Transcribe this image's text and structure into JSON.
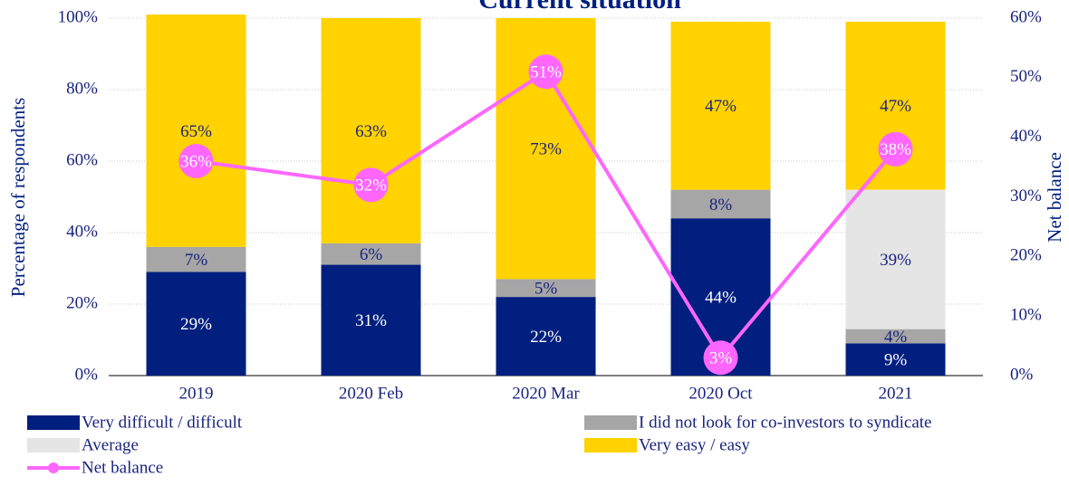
{
  "chart_data": {
    "type": "bar",
    "stacked": true,
    "title": "Current situation",
    "y_label": "Percentage of respondents",
    "y2_label": "Net balance",
    "categories": [
      "2019",
      "2020 Feb",
      "2020 Mar",
      "2020 Oct",
      "2021"
    ],
    "series": [
      {
        "name": "Very difficult / difficult",
        "color": "#001f7e",
        "values": [
          29,
          31,
          22,
          44,
          9
        ],
        "value_labels": [
          "29%",
          "31%",
          "22%",
          "44%",
          "9%"
        ]
      },
      {
        "name": "I did not look for co-investors to syndicate",
        "color": "#a6a6a6",
        "values": [
          7,
          6,
          5,
          8,
          4
        ],
        "value_labels": [
          "7%",
          "6%",
          "5%",
          "8%",
          "4%"
        ]
      },
      {
        "name": "Average",
        "color": "#e5e5e5",
        "values": [
          null,
          null,
          null,
          null,
          39
        ],
        "value_labels": [
          null,
          null,
          null,
          null,
          "39%"
        ]
      },
      {
        "name": "Very easy / easy",
        "color": "#ffd200",
        "values": [
          65,
          63,
          73,
          47,
          47
        ],
        "value_labels": [
          "65%",
          "63%",
          "73%",
          "47%",
          "47%"
        ]
      },
      {
        "name": "Net balance",
        "type": "line",
        "axis": "y2",
        "color": "#ff66ff",
        "values": [
          36,
          32,
          51,
          3,
          38
        ],
        "value_labels": [
          "36%",
          "32%",
          "51%",
          "3%",
          "38%"
        ]
      }
    ],
    "ylim": [
      0,
      100
    ],
    "yticks": [
      {
        "value": 0,
        "label": "0%"
      },
      {
        "value": 20,
        "label": "20%"
      },
      {
        "value": 40,
        "label": "40%"
      },
      {
        "value": 60,
        "label": "60%"
      },
      {
        "value": 80,
        "label": "80%"
      },
      {
        "value": 100,
        "label": "100%"
      }
    ],
    "y2lim": [
      0,
      60
    ],
    "y2ticks": [
      {
        "value": 0,
        "label": "0%"
      },
      {
        "value": 10,
        "label": "10%"
      },
      {
        "value": 20,
        "label": "20%"
      },
      {
        "value": 30,
        "label": "30%"
      },
      {
        "value": 40,
        "label": "40%"
      },
      {
        "value": 50,
        "label": "50%"
      },
      {
        "value": 60,
        "label": "60%"
      }
    ],
    "grid": true,
    "legend": "bottom"
  }
}
